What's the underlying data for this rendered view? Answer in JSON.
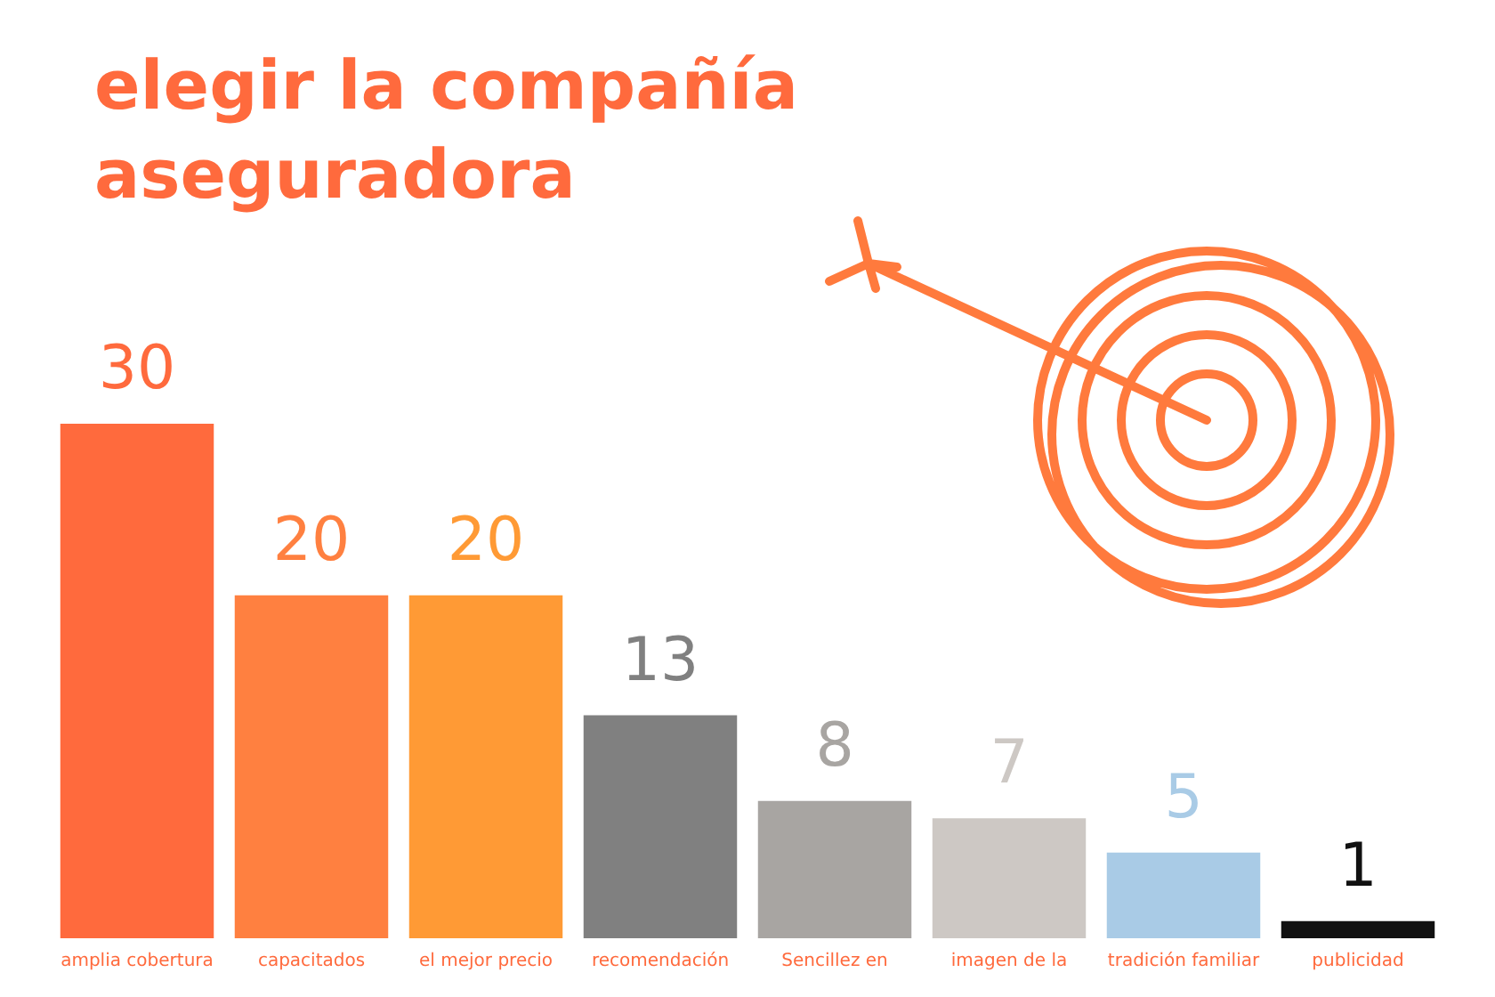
{
  "chart_data": {
    "type": "bar",
    "title": "elegir la compañía aseguradora",
    "categories": [
      "amplia cobertura",
      "capacitados",
      "el mejor precio",
      "recomendación",
      "Sencillez en",
      "imagen de la",
      "tradición familiar",
      "publicidad"
    ],
    "values": [
      30,
      20,
      20,
      13,
      8,
      7,
      5,
      1
    ],
    "colors": [
      "#ff6a3d",
      "#ff8040",
      "#ff9a35",
      "#808080",
      "#a8a5a2",
      "#cdc8c4",
      "#a9cbe6",
      "#111111"
    ],
    "tick_labels": "x",
    "data_labels": true
  }
}
